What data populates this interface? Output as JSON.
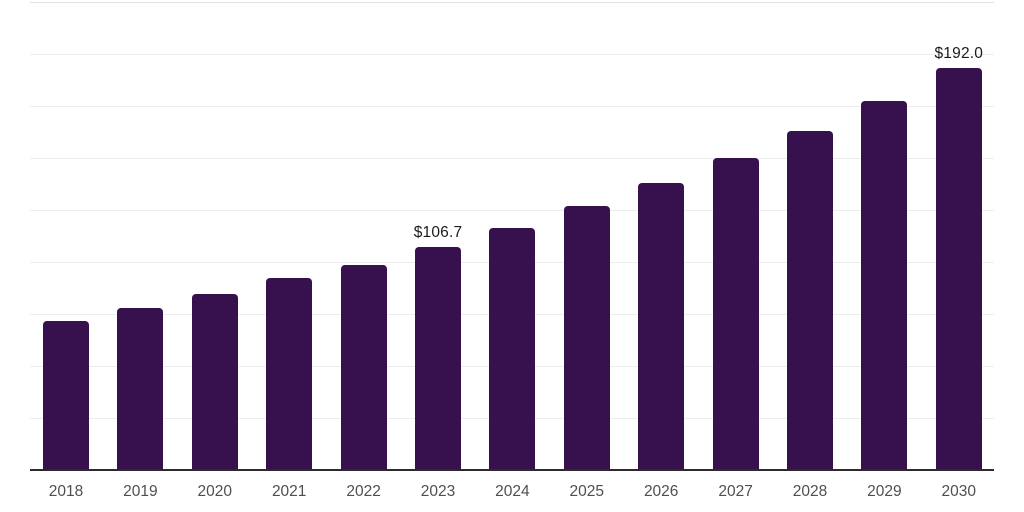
{
  "chart_data": {
    "type": "bar",
    "title": "",
    "xlabel": "",
    "ylabel": "",
    "categories": [
      "2018",
      "2019",
      "2020",
      "2021",
      "2022",
      "2023",
      "2024",
      "2025",
      "2026",
      "2027",
      "2028",
      "2029",
      "2030"
    ],
    "values": [
      71.0,
      77.6,
      84.0,
      91.5,
      98.0,
      106.7,
      115.8,
      126.0,
      137.1,
      149.0,
      162.0,
      176.3,
      192.0
    ],
    "data_labels": [
      "",
      "",
      "",
      "",
      "",
      "$106.7",
      "",
      "",
      "",
      "",
      "",
      "",
      "$192.0"
    ],
    "unit": "USD billions (inferred from $ labels)",
    "ylim": [
      0,
      225
    ],
    "grid_step": 25,
    "grid": true,
    "legend": false,
    "colors": {
      "bar": "#37104E",
      "axis_line": "#2b2b2b",
      "gridline": "#ececec",
      "gridline_top": "#e0e0e0",
      "tick_label": "#4f4f4f",
      "data_label": "#1b1b1b",
      "background": "#ffffff"
    }
  }
}
